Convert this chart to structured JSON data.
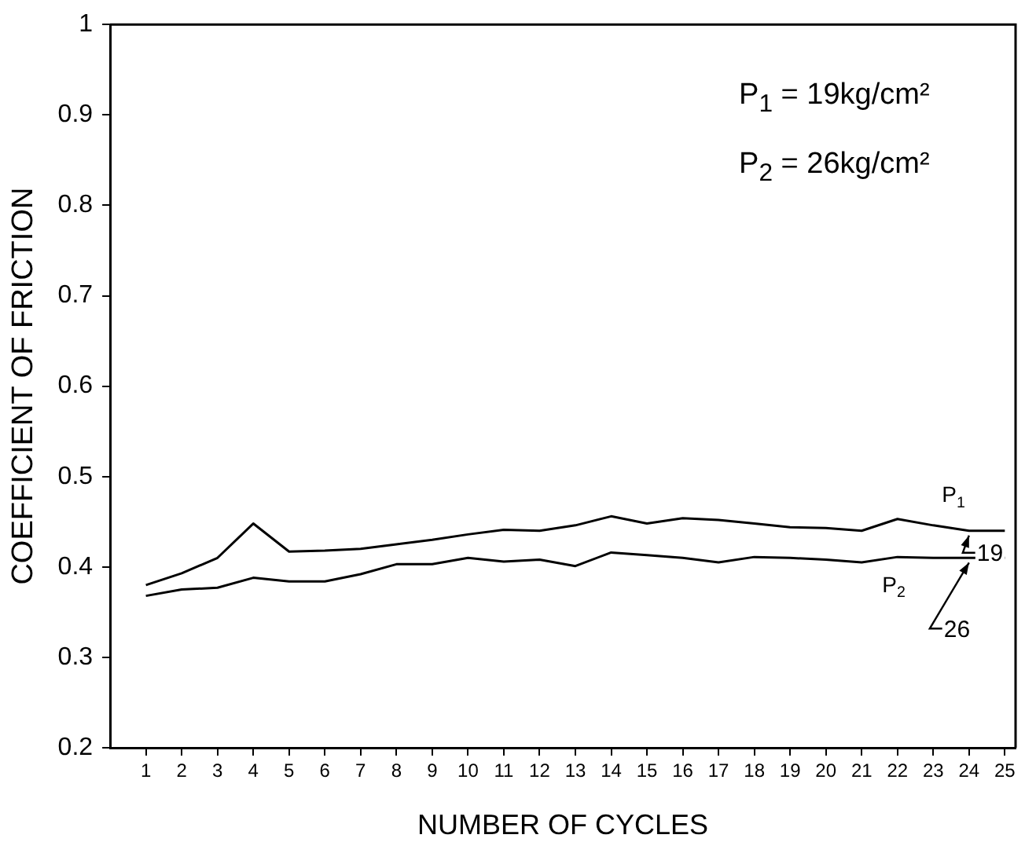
{
  "chart_data": {
    "type": "line",
    "xlabel": "NUMBER OF CYCLES",
    "ylabel": "COEFFICIENT OF FRICTION",
    "x": [
      1,
      2,
      3,
      4,
      5,
      6,
      7,
      8,
      9,
      10,
      11,
      12,
      13,
      14,
      15,
      16,
      17,
      18,
      19,
      20,
      21,
      22,
      23,
      24,
      25
    ],
    "series": [
      {
        "name": "P$_{1}$",
        "color": "#000000",
        "values": [
          0.38,
          0.393,
          0.41,
          0.448,
          0.417,
          0.418,
          0.42,
          0.425,
          0.43,
          0.436,
          0.441,
          0.44,
          0.446,
          0.456,
          0.448,
          0.454,
          0.452,
          0.448,
          0.444,
          0.443,
          0.44,
          0.453,
          0.446,
          0.44,
          0.44
        ]
      },
      {
        "name": "P$_{2}$",
        "color": "#000000",
        "values": [
          0.368,
          0.375,
          0.377,
          0.388,
          0.384,
          0.384,
          0.392,
          0.403,
          0.403,
          0.41,
          0.406,
          0.408,
          0.401,
          0.416,
          0.413,
          0.41,
          0.405,
          0.411,
          0.41,
          0.408,
          0.405,
          0.411,
          0.41,
          0.41,
          0.41
        ]
      }
    ],
    "xlim": [
      0,
      25.3
    ],
    "xticks": [
      1,
      2,
      3,
      4,
      5,
      6,
      7,
      8,
      9,
      10,
      11,
      12,
      13,
      14,
      15,
      16,
      17,
      18,
      19,
      20,
      21,
      22,
      23,
      24,
      25
    ],
    "ylim": [
      0.2,
      1
    ],
    "yticks": [
      0.2,
      0.3,
      0.4,
      0.5,
      0.6,
      0.7,
      0.8,
      0.9,
      1
    ],
    "annotations": [
      "P$_{1}$ = 19kg/cm²",
      "P$_{2}$ = 26kg/cm²",
      {
        "text": "19",
        "x": 24,
        "y": 0.44
      },
      {
        "text": "26",
        "x": 24,
        "y": 0.41
      }
    ],
    "grid": false,
    "legend": false,
    "marker": "none",
    "line_style": "solid"
  }
}
